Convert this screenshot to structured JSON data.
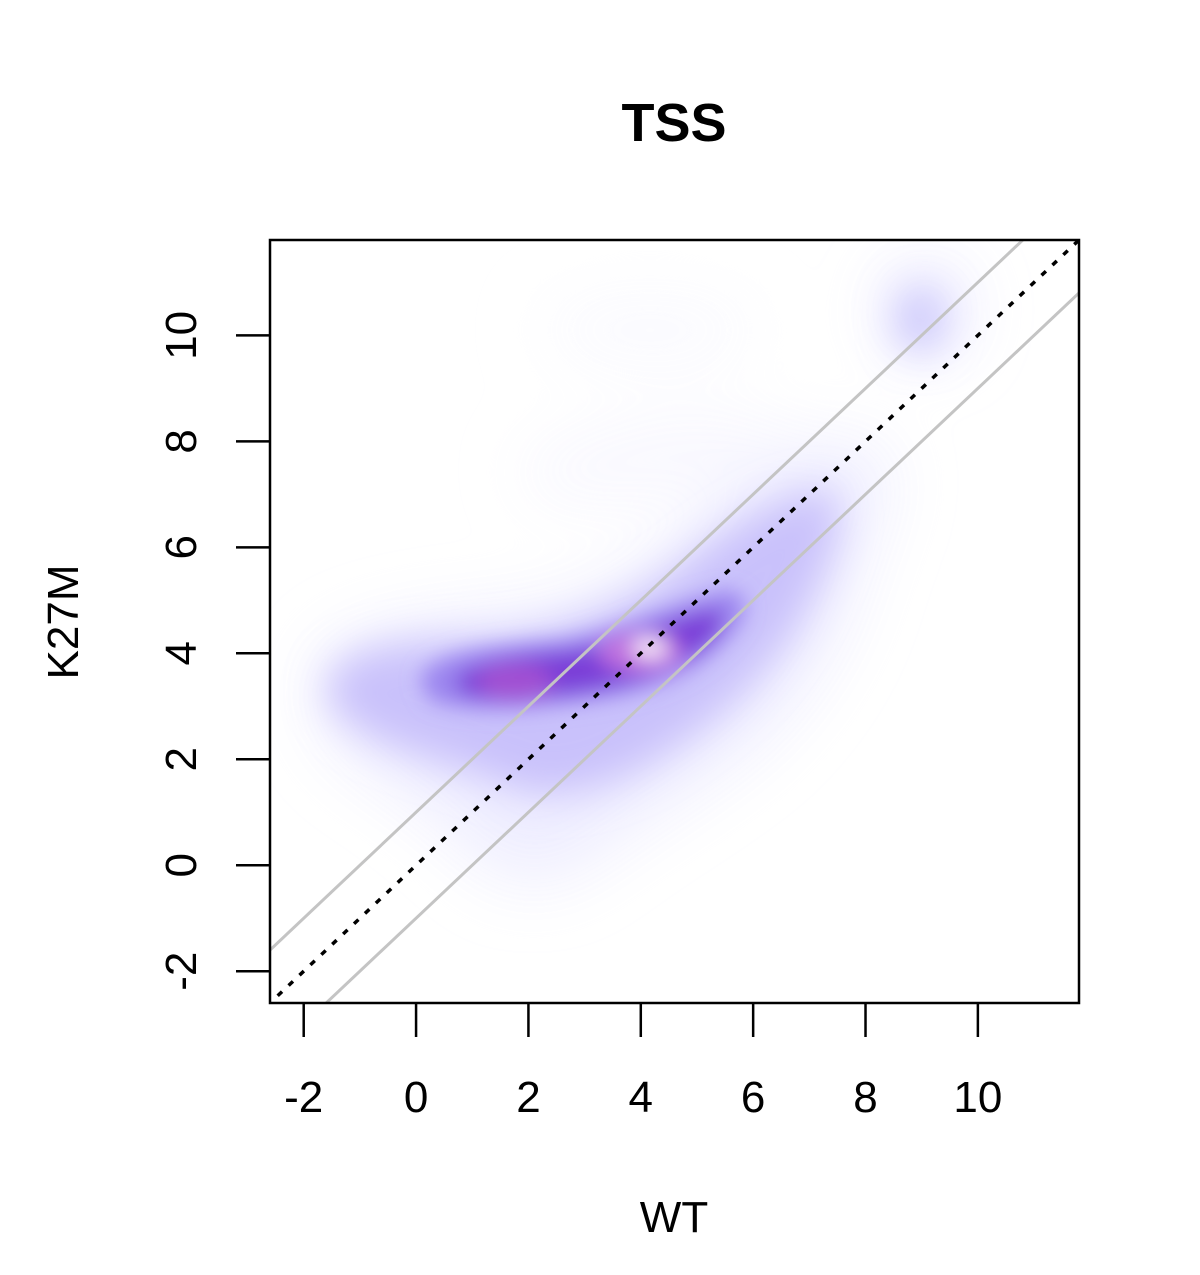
{
  "chart_data": {
    "type": "heatmap",
    "subtype": "smoothed-density-scatter",
    "title": "TSS",
    "xlabel": "WT",
    "ylabel": "K27M",
    "xlim": [
      -2.6,
      11.8
    ],
    "ylim": [
      -2.6,
      11.8
    ],
    "x_ticks": [
      -2,
      0,
      2,
      4,
      6,
      8,
      10
    ],
    "y_ticks": [
      -2,
      0,
      2,
      4,
      6,
      8,
      10
    ],
    "grid": false,
    "legend": "none",
    "density_color_ramp": [
      "#ffffff",
      "#e6e2ff",
      "#a08cf0",
      "#7a3fd6",
      "#8a2fc4",
      "#e3b4f0",
      "#ffffff"
    ],
    "density_peaks": [
      {
        "x": 4.1,
        "y": 4.05
      },
      {
        "x": 2.0,
        "y": 3.4
      }
    ],
    "reference_lines": [
      {
        "name": "identity",
        "intercept": 0,
        "slope": 1,
        "style": "dotted",
        "color": "#000000"
      },
      {
        "name": "upper",
        "intercept": 1,
        "slope": 1,
        "style": "solid",
        "color": "#c4c4c4"
      },
      {
        "name": "lower",
        "intercept": -1,
        "slope": 1,
        "style": "solid",
        "color": "#c4c4c4"
      }
    ]
  }
}
